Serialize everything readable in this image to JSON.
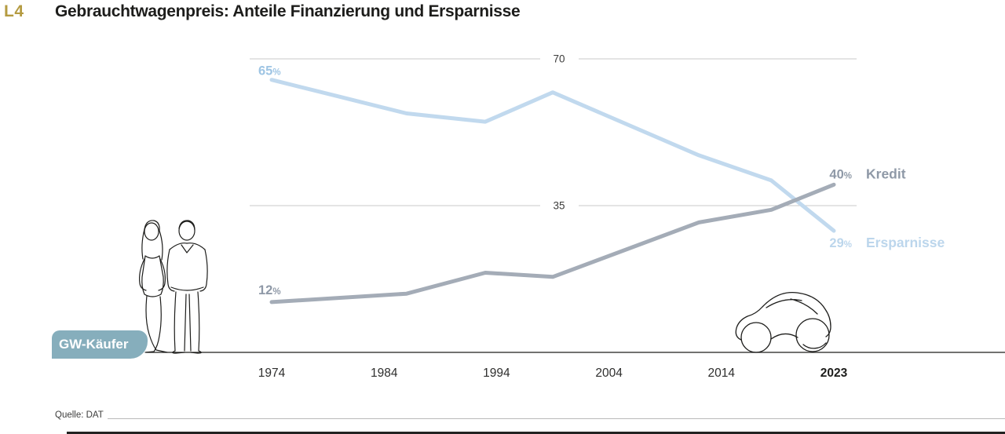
{
  "header": {
    "tag": "L4",
    "title": "Gebrauchtwagenpreis: Anteile Finanzierung und Ersparnisse"
  },
  "badge": {
    "label": "GW-Käufer"
  },
  "footer": {
    "source": "Quelle: DAT"
  },
  "illustrations": [
    "two-buyers-line-drawing",
    "car-line-drawing"
  ],
  "colors": {
    "accent_gold": "#b49b41",
    "ink": "#1d1d1b",
    "ersparnisse_line": "#c1d9ee",
    "kredit_line": "#a4acb7",
    "badge_teal": "#86aebc",
    "gridline": "#c9c9c9"
  },
  "chart_data": {
    "type": "line",
    "title": "Gebrauchtwagenpreis: Anteile Finanzierung und Ersparnisse",
    "unit": "%",
    "x_ticks": [
      "1974",
      "1984",
      "1994",
      "2004",
      "2014",
      "2023"
    ],
    "emphasized_tick": "2023",
    "gridlines": [
      70,
      35
    ],
    "ylim": [
      0,
      75
    ],
    "grid": "partial-horizontal",
    "legend_position": "right-of-line-ends",
    "series": [
      {
        "name": "Ersparnisse",
        "color": "#c1d9ee",
        "start_label": "65",
        "end_label": "29",
        "start_label_color": "#9fc5e4",
        "end_label_color": "#bcd6ec",
        "legend_color": "#bcd6ec",
        "points": [
          {
            "year": 1974,
            "value": 65
          },
          {
            "year": 1980,
            "value": 61
          },
          {
            "year": 1986,
            "value": 57
          },
          {
            "year": 1993,
            "value": 55
          },
          {
            "year": 1999,
            "value": 62
          },
          {
            "year": 2012,
            "value": 47
          },
          {
            "year": 2018,
            "value": 41
          },
          {
            "year": 2023,
            "value": 29
          }
        ]
      },
      {
        "name": "Kredit",
        "color": "#a4acb7",
        "start_label": "12",
        "end_label": "40",
        "start_label_color": "#8f99a7",
        "end_label_color": "#8f99a7",
        "legend_color": "#8f99a7",
        "points": [
          {
            "year": 1974,
            "value": 12
          },
          {
            "year": 1986,
            "value": 14
          },
          {
            "year": 1993,
            "value": 19
          },
          {
            "year": 1999,
            "value": 18
          },
          {
            "year": 2012,
            "value": 31
          },
          {
            "year": 2018,
            "value": 34
          },
          {
            "year": 2023,
            "value": 40
          }
        ]
      }
    ]
  }
}
